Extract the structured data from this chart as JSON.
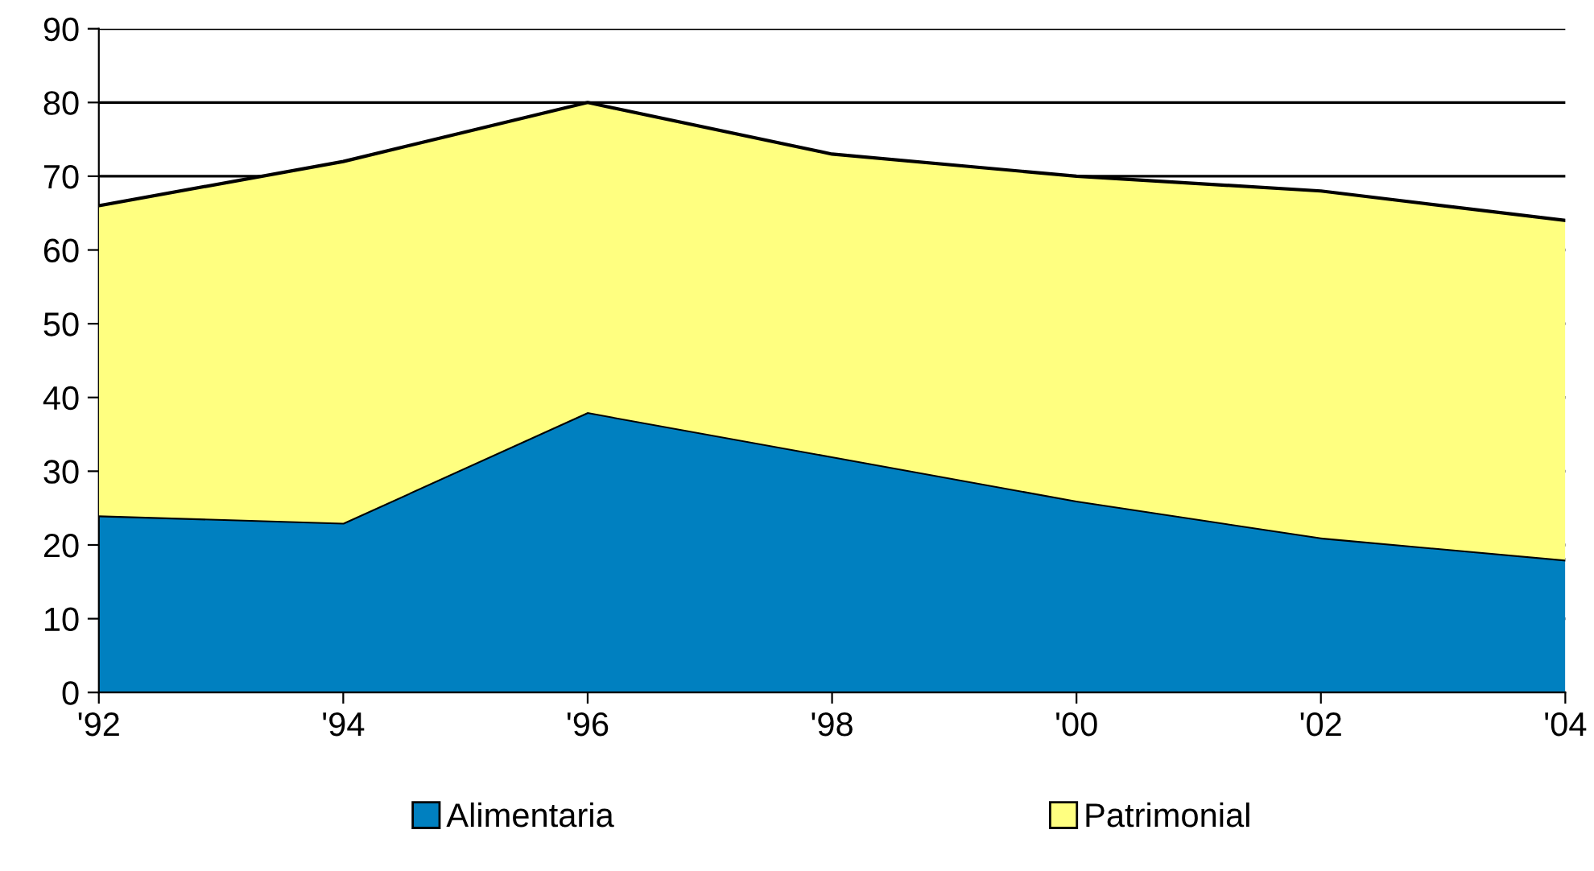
{
  "chart_data": {
    "type": "area",
    "stacked": true,
    "categories": [
      "'92",
      "'94",
      "'96",
      "'98",
      "'00",
      "'02",
      "'04"
    ],
    "series": [
      {
        "name": "Alimentaria",
        "color": "#0080c0",
        "values": [
          24,
          23,
          38,
          32,
          26,
          21,
          18
        ]
      },
      {
        "name": "Patrimonial",
        "color": "#ffff80",
        "values": [
          42,
          49,
          42,
          41,
          44,
          47,
          46
        ]
      }
    ],
    "ylim": [
      0,
      90
    ],
    "yticks": [
      0,
      10,
      20,
      30,
      40,
      50,
      60,
      70,
      80,
      90
    ],
    "grid": "y",
    "legend": "bottom"
  }
}
